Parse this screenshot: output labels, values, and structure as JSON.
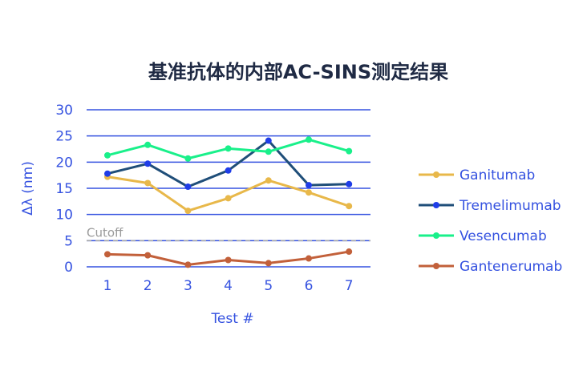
{
  "chart_data": {
    "type": "line",
    "title": "基准抗体的内部AC-SINS测定结果",
    "xlabel": "Test #",
    "ylabel": "Δλ (nm)",
    "categories": [
      "1",
      "2",
      "3",
      "4",
      "5",
      "6",
      "7"
    ],
    "ylim": [
      0,
      30
    ],
    "yticks": [
      "0",
      "5",
      "10",
      "15",
      "20",
      "25",
      "30"
    ],
    "grid": true,
    "legend_position": "right",
    "cutoff": {
      "label": "Cutoff",
      "value": 5,
      "color": "#a6a6a6"
    },
    "series": [
      {
        "name": "Ganitumab",
        "color": "#e8b84a",
        "marker_color": "#e8b84a",
        "values": [
          17.2,
          16.0,
          10.7,
          13.1,
          16.5,
          14.2,
          11.6
        ]
      },
      {
        "name": "Tremelimumab",
        "color": "#1f4e79",
        "marker_color": "#1f3de8",
        "values": [
          17.8,
          19.7,
          15.3,
          18.4,
          24.1,
          15.6,
          15.8
        ]
      },
      {
        "name": "Vesencumab",
        "color": "#19f08a",
        "marker_color": "#19f08a",
        "values": [
          21.3,
          23.3,
          20.7,
          22.6,
          22.0,
          24.3,
          22.1
        ]
      },
      {
        "name": "Gantenerumab",
        "color": "#c2603a",
        "marker_color": "#c2603a",
        "values": [
          2.4,
          2.2,
          0.4,
          1.3,
          0.7,
          1.6,
          2.9
        ]
      }
    ],
    "colors": {
      "axis_text": "#3552e0",
      "grid": "#3552e0",
      "title": "#1f2a44"
    }
  }
}
